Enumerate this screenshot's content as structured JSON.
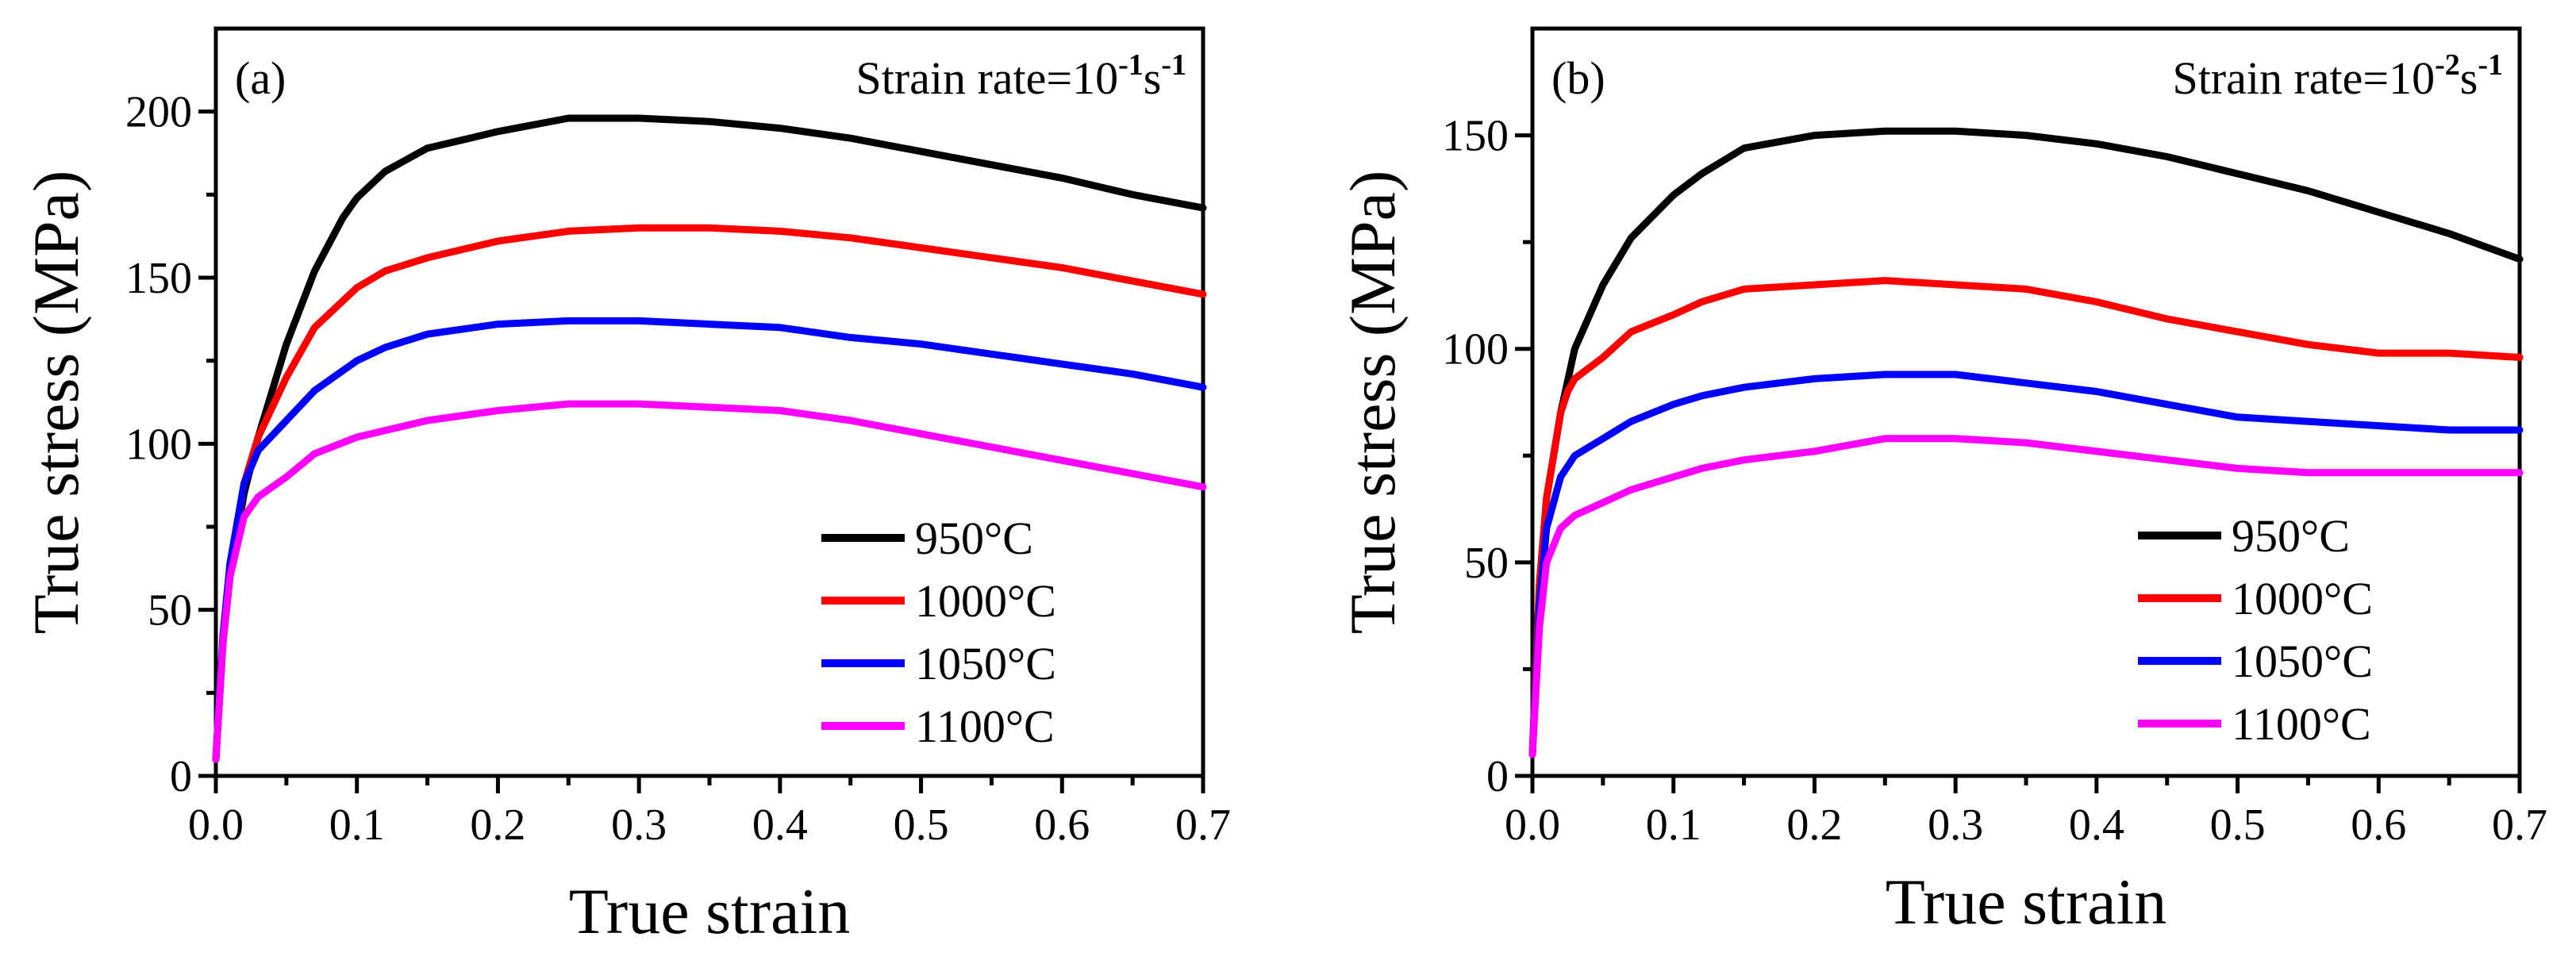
{
  "chart_data": [
    {
      "type": "line",
      "panel_label": "(a)",
      "title": "",
      "annotation": {
        "prefix": "Strain rate=10",
        "exponent": "-1",
        "unit": "s",
        "unit_exponent": "-1"
      },
      "xlabel": "True strain",
      "ylabel": "True stress (MPa)",
      "xlim": [
        0.0,
        0.7
      ],
      "ylim": [
        0,
        225
      ],
      "xticks": [
        0.0,
        0.1,
        0.2,
        0.3,
        0.4,
        0.5,
        0.6,
        0.7
      ],
      "xtick_labels": [
        "0.0",
        "0.1",
        "0.2",
        "0.3",
        "0.4",
        "0.5",
        "0.6",
        "0.7"
      ],
      "yticks": [
        0,
        50,
        100,
        150,
        200
      ],
      "ytick_labels": [
        "0",
        "50",
        "100",
        "150",
        "200"
      ],
      "legend_position": "bottom-right",
      "series": [
        {
          "name": "950°C",
          "color": "#000000",
          "x": [
            0.0,
            0.005,
            0.01,
            0.02,
            0.03,
            0.05,
            0.07,
            0.09,
            0.1,
            0.12,
            0.15,
            0.18,
            0.2,
            0.25,
            0.3,
            0.35,
            0.4,
            0.45,
            0.5,
            0.55,
            0.6,
            0.65,
            0.7
          ],
          "y": [
            5,
            40,
            60,
            85,
            102,
            130,
            152,
            168,
            174,
            182,
            189,
            192,
            194,
            198,
            198,
            197,
            195,
            192,
            188,
            184,
            180,
            175,
            171
          ]
        },
        {
          "name": "1000°C",
          "color": "#ff0000",
          "x": [
            0.0,
            0.005,
            0.01,
            0.02,
            0.03,
            0.05,
            0.07,
            0.1,
            0.12,
            0.15,
            0.2,
            0.25,
            0.3,
            0.35,
            0.4,
            0.45,
            0.5,
            0.55,
            0.6,
            0.65,
            0.7
          ],
          "y": [
            5,
            40,
            62,
            88,
            102,
            120,
            135,
            147,
            152,
            156,
            161,
            164,
            165,
            165,
            164,
            162,
            159,
            156,
            153,
            149,
            145
          ]
        },
        {
          "name": "1050°C",
          "color": "#0000ff",
          "x": [
            0.0,
            0.005,
            0.01,
            0.02,
            0.03,
            0.05,
            0.07,
            0.1,
            0.12,
            0.15,
            0.2,
            0.25,
            0.3,
            0.35,
            0.4,
            0.45,
            0.5,
            0.55,
            0.6,
            0.65,
            0.7
          ],
          "y": [
            5,
            42,
            64,
            88,
            98,
            107,
            116,
            125,
            129,
            133,
            136,
            137,
            137,
            136,
            135,
            132,
            130,
            127,
            124,
            121,
            117
          ]
        },
        {
          "name": "1100°C",
          "color": "#ff00ff",
          "x": [
            0.0,
            0.005,
            0.01,
            0.02,
            0.03,
            0.05,
            0.07,
            0.1,
            0.12,
            0.15,
            0.2,
            0.25,
            0.3,
            0.35,
            0.4,
            0.45,
            0.5,
            0.55,
            0.6,
            0.65,
            0.7
          ],
          "y": [
            5,
            40,
            60,
            78,
            84,
            90,
            97,
            102,
            104,
            107,
            110,
            112,
            112,
            111,
            110,
            107,
            103,
            99,
            95,
            91,
            87
          ]
        }
      ]
    },
    {
      "type": "line",
      "panel_label": "(b)",
      "title": "",
      "annotation": {
        "prefix": "Strain rate=10",
        "exponent": "-2",
        "unit": "s",
        "unit_exponent": "-1"
      },
      "xlabel": "True strain",
      "ylabel": "True stress (MPa)",
      "xlim": [
        0.0,
        0.7
      ],
      "ylim": [
        0,
        175
      ],
      "xticks": [
        0.0,
        0.1,
        0.2,
        0.3,
        0.4,
        0.5,
        0.6,
        0.7
      ],
      "xtick_labels": [
        "0.0",
        "0.1",
        "0.2",
        "0.3",
        "0.4",
        "0.5",
        "0.6",
        "0.7"
      ],
      "yticks": [
        0,
        50,
        100,
        150
      ],
      "ytick_labels": [
        "0",
        "50",
        "100",
        "150"
      ],
      "legend_position": "bottom-right",
      "series": [
        {
          "name": "950°C",
          "color": "#000000",
          "x": [
            0.0,
            0.005,
            0.01,
            0.02,
            0.03,
            0.05,
            0.07,
            0.1,
            0.12,
            0.15,
            0.2,
            0.25,
            0.3,
            0.35,
            0.4,
            0.45,
            0.5,
            0.55,
            0.6,
            0.65,
            0.7
          ],
          "y": [
            5,
            45,
            65,
            85,
            100,
            115,
            126,
            136,
            141,
            147,
            150,
            151,
            151,
            150,
            148,
            145,
            141,
            137,
            132,
            127,
            121
          ]
        },
        {
          "name": "1000°C",
          "color": "#ff0000",
          "x": [
            0.0,
            0.005,
            0.01,
            0.02,
            0.025,
            0.03,
            0.05,
            0.07,
            0.1,
            0.12,
            0.15,
            0.2,
            0.25,
            0.3,
            0.35,
            0.4,
            0.45,
            0.5,
            0.55,
            0.6,
            0.65,
            0.7
          ],
          "y": [
            5,
            45,
            65,
            85,
            90,
            93,
            98,
            104,
            108,
            111,
            114,
            115,
            116,
            115,
            114,
            111,
            107,
            104,
            101,
            99,
            99,
            98
          ]
        },
        {
          "name": "1050°C",
          "color": "#0000ff",
          "x": [
            0.0,
            0.005,
            0.01,
            0.02,
            0.03,
            0.05,
            0.07,
            0.1,
            0.12,
            0.15,
            0.2,
            0.25,
            0.3,
            0.35,
            0.4,
            0.45,
            0.5,
            0.55,
            0.6,
            0.65,
            0.7
          ],
          "y": [
            5,
            40,
            58,
            70,
            75,
            79,
            83,
            87,
            89,
            91,
            93,
            94,
            94,
            92,
            90,
            87,
            84,
            83,
            82,
            81,
            81
          ]
        },
        {
          "name": "1100°C",
          "color": "#ff00ff",
          "x": [
            0.0,
            0.005,
            0.01,
            0.02,
            0.03,
            0.05,
            0.07,
            0.1,
            0.12,
            0.15,
            0.2,
            0.25,
            0.3,
            0.35,
            0.4,
            0.45,
            0.5,
            0.55,
            0.6,
            0.65,
            0.7
          ],
          "y": [
            5,
            35,
            50,
            58,
            61,
            64,
            67,
            70,
            72,
            74,
            76,
            79,
            79,
            78,
            76,
            74,
            72,
            71,
            71,
            71,
            71
          ]
        }
      ]
    }
  ]
}
